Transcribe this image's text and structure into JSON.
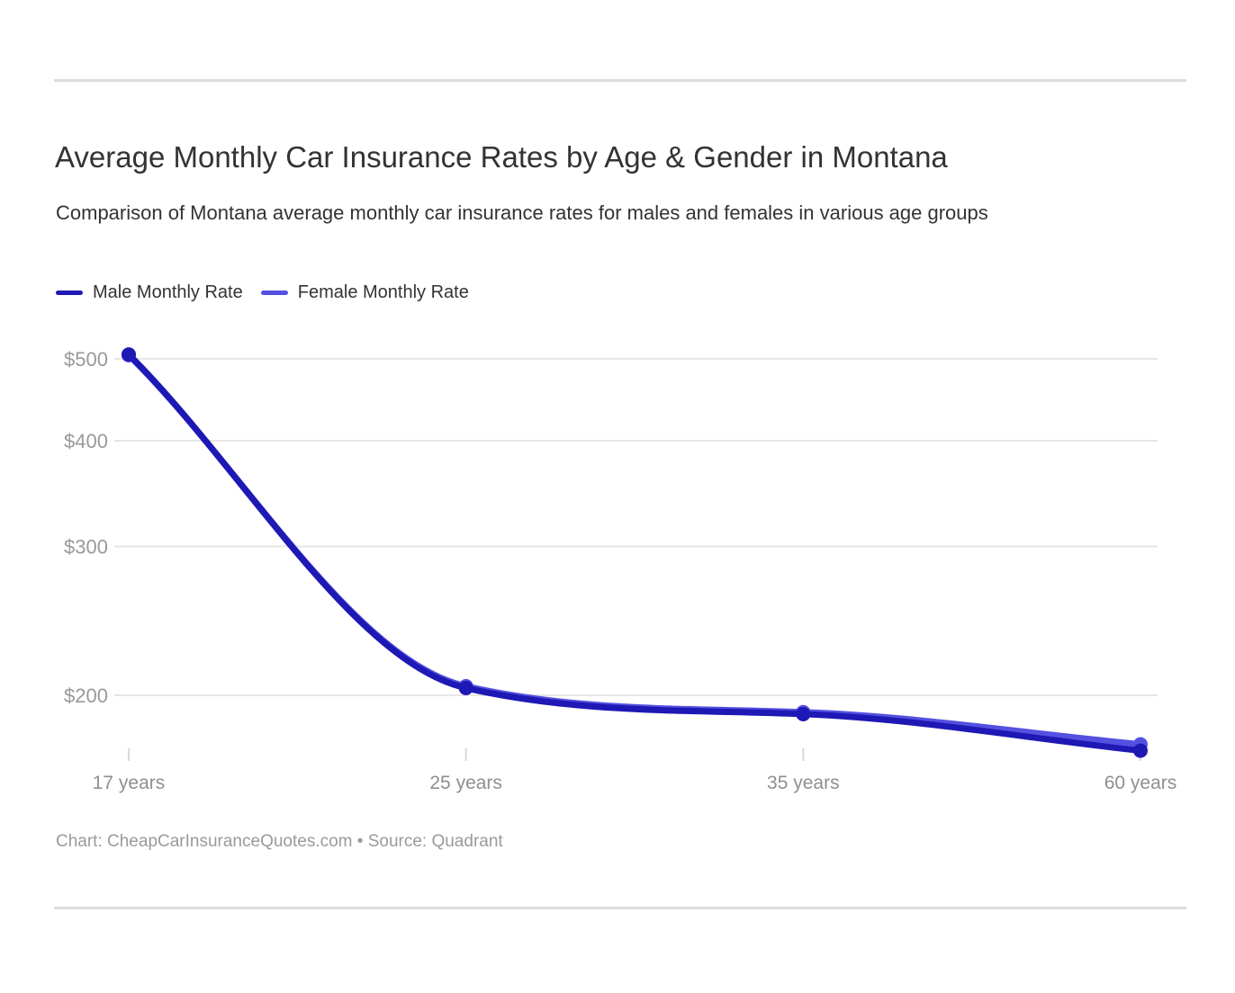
{
  "header": {
    "title": "Average Monthly Car Insurance Rates by Age & Gender in Montana",
    "subtitle": "Comparison of Montana average monthly car insurance rates for males and females in various age groups"
  },
  "legend": {
    "items": [
      {
        "label": "Male Monthly Rate",
        "color": "#1e18b4"
      },
      {
        "label": "Female Monthly Rate",
        "color": "#5450e0"
      }
    ]
  },
  "footer": {
    "text": "Chart: CheapCarInsuranceQuotes.com • Source: Quadrant"
  },
  "colors": {
    "text_primary": "#333333",
    "axis_text": "#999999",
    "grid": "#e6e6e6",
    "tick": "#d9d9d9",
    "divider": "#dcdcdc",
    "male_line": "#1e18b4",
    "female_line": "#5450e0"
  },
  "chart_data": {
    "type": "line",
    "title": "Average Monthly Car Insurance Rates by Age & Gender in Montana",
    "subtitle": "Comparison of Montana average monthly car insurance rates for males and females in various age groups",
    "categories": [
      "17 years",
      "25 years",
      "35 years",
      "60 years"
    ],
    "series": [
      {
        "name": "Male Monthly Rate",
        "color": "#1e18b4",
        "values": [
          506,
          204,
          190,
          172
        ]
      },
      {
        "name": "Female Monthly Rate",
        "color": "#5450e0",
        "values": [
          505,
          205,
          191,
          175
        ]
      }
    ],
    "xlabel": "",
    "ylabel": "",
    "yticks": [
      500,
      400,
      300,
      200
    ],
    "ytick_labels": [
      "$500",
      "$400",
      "$300",
      "$200"
    ],
    "y_scale": "log",
    "ylim": [
      165,
      530
    ],
    "grid": "horizontal",
    "legend_position": "top-left",
    "markers": true
  }
}
